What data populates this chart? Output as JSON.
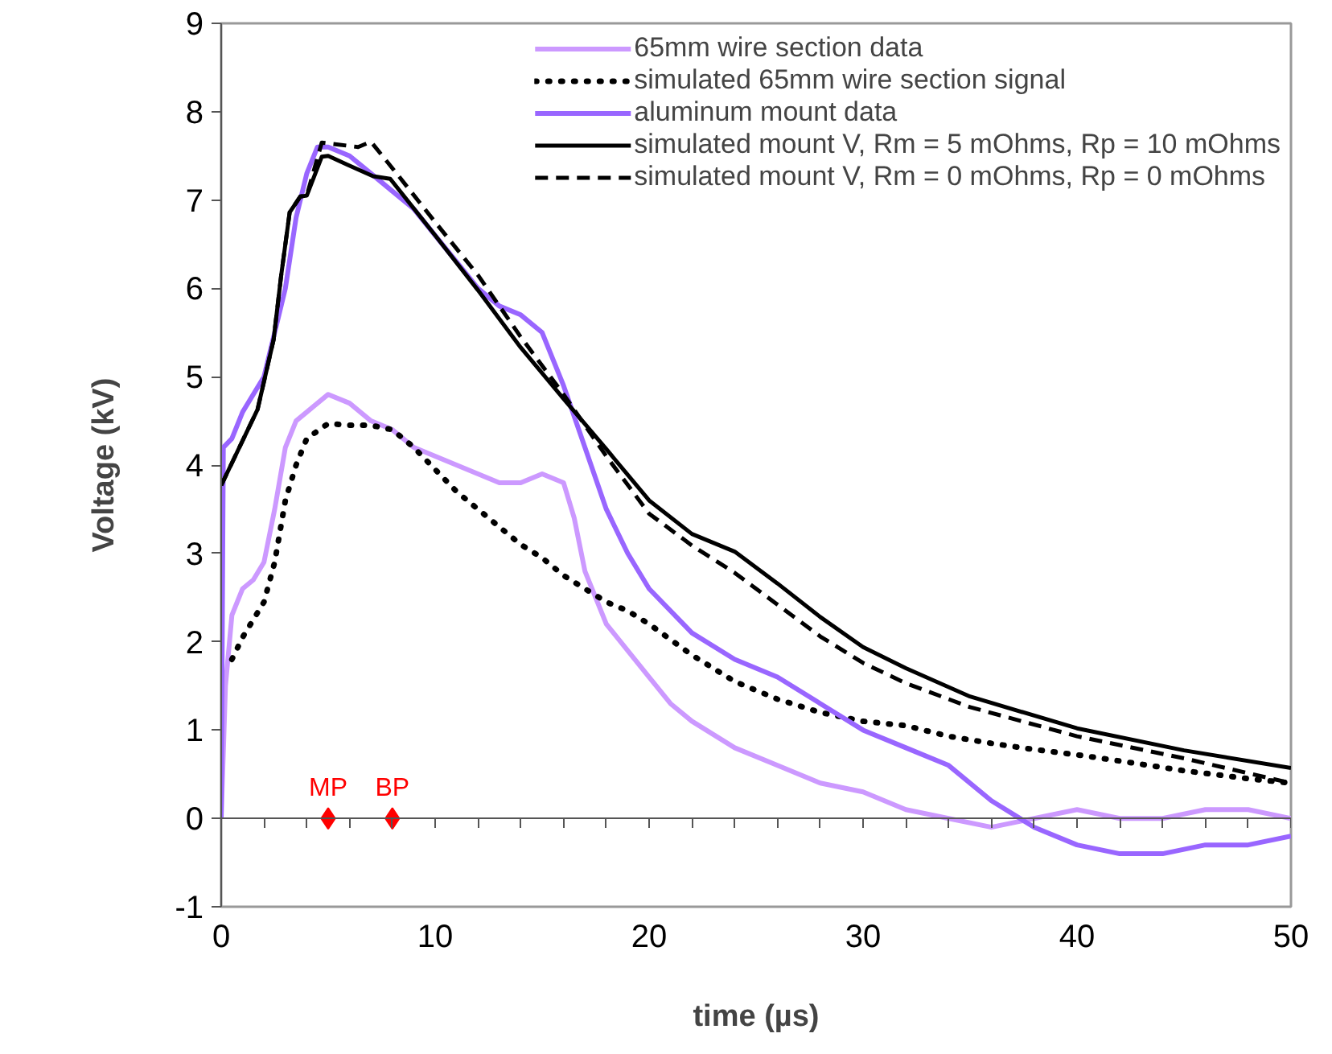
{
  "chart_data": {
    "type": "line",
    "xlabel": "time (µs)",
    "ylabel": "Voltage (kV)",
    "xlim": [
      0,
      50
    ],
    "ylim": [
      -1,
      9
    ],
    "xticks": [
      0,
      {
        "value": 2,
        "label": null
      },
      {
        "value": 4,
        "label": null
      },
      {
        "value": 6,
        "label": null
      },
      {
        "value": 8,
        "label": null
      },
      10,
      {
        "value": 12,
        "label": null
      },
      {
        "value": 14,
        "label": null
      },
      {
        "value": 16,
        "label": null
      },
      {
        "value": 18,
        "label": null
      },
      20,
      {
        "value": 22,
        "label": null
      },
      {
        "value": 24,
        "label": null
      },
      {
        "value": 26,
        "label": null
      },
      {
        "value": 28,
        "label": null
      },
      30,
      {
        "value": 32,
        "label": null
      },
      {
        "value": 34,
        "label": null
      },
      {
        "value": 36,
        "label": null
      },
      {
        "value": 38,
        "label": null
      },
      40,
      {
        "value": 42,
        "label": null
      },
      {
        "value": 44,
        "label": null
      },
      {
        "value": 46,
        "label": null
      },
      {
        "value": 48,
        "label": null
      },
      50
    ],
    "yticks": [
      -1,
      0,
      1,
      2,
      3,
      4,
      5,
      6,
      7,
      8,
      9
    ],
    "legend": "top right",
    "marker": "none",
    "series": [
      {
        "name": "65mm wire section data",
        "color": "#cc99ff",
        "line_style": "solid",
        "x": [
          0,
          0.2,
          0.5,
          1,
          1.5,
          2,
          2.5,
          3,
          3.5,
          4,
          5,
          6,
          7,
          8,
          9,
          10,
          11,
          12,
          13,
          14,
          15,
          16,
          16.5,
          17,
          18,
          19,
          20,
          21,
          22,
          23,
          24,
          26,
          28,
          30,
          32,
          34,
          36,
          38,
          40,
          42,
          44,
          46,
          48,
          50
        ],
        "values": [
          0,
          1.5,
          2.3,
          2.6,
          2.7,
          2.9,
          3.5,
          4.2,
          4.5,
          4.6,
          4.8,
          4.7,
          4.5,
          4.4,
          4.2,
          4.1,
          4.0,
          3.9,
          3.8,
          3.8,
          3.9,
          3.8,
          3.4,
          2.8,
          2.2,
          1.9,
          1.6,
          1.3,
          1.1,
          0.95,
          0.8,
          0.6,
          0.4,
          0.3,
          0.1,
          0.0,
          -0.1,
          0.0,
          0.1,
          0.0,
          0.0,
          0.1,
          0.1,
          0.0
        ]
      },
      {
        "name": "simulated 65mm wire section signal",
        "color": "#000000",
        "line_style": "dotted",
        "x": [
          0.5,
          1,
          2,
          2.5,
          3,
          3.5,
          4,
          5,
          6,
          7,
          8,
          9,
          10,
          11,
          12,
          13,
          14,
          15,
          16,
          17,
          18,
          19,
          20,
          22,
          24,
          26,
          28,
          30,
          32,
          34,
          36,
          38,
          40,
          42,
          45,
          48,
          50
        ],
        "values": [
          1.8,
          2.05,
          2.45,
          2.9,
          3.6,
          4.0,
          4.3,
          4.47,
          4.45,
          4.45,
          4.4,
          4.2,
          3.95,
          3.7,
          3.5,
          3.3,
          3.1,
          2.95,
          2.75,
          2.6,
          2.45,
          2.35,
          2.2,
          1.85,
          1.55,
          1.35,
          1.2,
          1.1,
          1.05,
          0.93,
          0.85,
          0.78,
          0.72,
          0.65,
          0.54,
          0.45,
          0.4
        ]
      },
      {
        "name": "aluminum mount data",
        "color": "#9966ff",
        "line_style": "solid",
        "x": [
          0,
          0.1,
          0.5,
          1,
          2,
          3,
          3.5,
          4,
          4.5,
          5,
          6,
          7,
          8,
          9,
          10,
          11,
          12,
          13,
          14,
          15,
          16,
          17,
          18,
          19,
          20,
          22,
          24,
          26,
          28,
          30,
          32,
          34,
          36,
          38,
          40,
          42,
          44,
          46,
          48,
          50
        ],
        "values": [
          0,
          4.2,
          4.3,
          4.6,
          5.0,
          6.0,
          6.8,
          7.3,
          7.6,
          7.6,
          7.5,
          7.3,
          7.1,
          6.9,
          6.6,
          6.3,
          6.0,
          5.8,
          5.7,
          5.5,
          4.9,
          4.2,
          3.5,
          3.0,
          2.6,
          2.1,
          1.8,
          1.6,
          1.3,
          1.0,
          0.8,
          0.6,
          0.2,
          -0.1,
          -0.3,
          -0.4,
          -0.4,
          -0.3,
          -0.3,
          -0.2
        ]
      },
      {
        "name": "simulated mount V, Rm = 5 mOhms, Rp = 10 mOhms",
        "color": "#000000",
        "line_style": "solid",
        "x": [
          0,
          1.7,
          2.45,
          2.8,
          3.2,
          3.7,
          4,
          4.7,
          5,
          5.9,
          7.1,
          7.9,
          10,
          12,
          14,
          16,
          18,
          20,
          22,
          24,
          26,
          28,
          30,
          32,
          35,
          40,
          45,
          50
        ],
        "values": [
          3.77,
          4.63,
          5.42,
          6.14,
          6.86,
          7.04,
          7.05,
          7.49,
          7.5,
          7.4,
          7.27,
          7.24,
          6.6,
          5.98,
          5.33,
          4.75,
          4.18,
          3.6,
          3.22,
          3.02,
          2.66,
          2.28,
          1.94,
          1.7,
          1.38,
          1.02,
          0.77,
          0.57
        ]
      },
      {
        "name": "simulated mount V, Rm = 0 mOhms, Rp = 0 mOhms",
        "color": "#000000",
        "line_style": "dashed",
        "x": [
          0,
          1.7,
          2.45,
          2.8,
          3.2,
          3.7,
          4,
          4.7,
          5.4,
          6.4,
          7.0,
          8.2,
          10,
          12,
          14,
          16,
          18,
          20,
          22,
          24,
          26,
          28,
          30,
          32,
          35,
          40,
          45,
          50
        ],
        "values": [
          3.77,
          4.63,
          5.42,
          6.14,
          6.86,
          7.04,
          7.05,
          7.65,
          7.63,
          7.6,
          7.66,
          7.3,
          6.75,
          6.15,
          5.45,
          4.8,
          4.1,
          3.45,
          3.09,
          2.78,
          2.42,
          2.06,
          1.76,
          1.53,
          1.26,
          0.93,
          0.68,
          0.4
        ]
      },
      {
        "type": "scatter",
        "marker": "diamond",
        "color": "#ff0000",
        "x": [
          5,
          8
        ],
        "values": [
          0,
          0
        ]
      }
    ],
    "annotations": [
      {
        "text": "MP",
        "x": 5,
        "y": 0
      },
      {
        "text": "BP",
        "x": 8,
        "y": 0
      }
    ]
  }
}
